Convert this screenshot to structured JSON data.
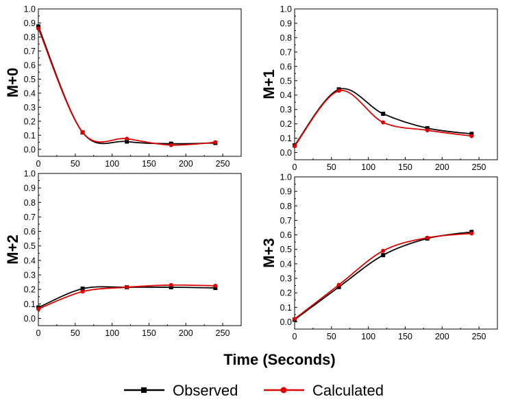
{
  "figure": {
    "xlabel": "Time (Seconds)",
    "legend": [
      {
        "name": "Observed",
        "color": "#000000",
        "marker": "square"
      },
      {
        "name": "Calculated",
        "color": "#e00000",
        "marker": "circle"
      }
    ]
  },
  "chart_data": [
    {
      "type": "line",
      "ylabel": "M+0",
      "xlim": [
        0,
        275
      ],
      "ylim": [
        -0.05,
        1.0
      ],
      "xticks": [
        0,
        50,
        100,
        150,
        200,
        250
      ],
      "yticks": [
        0.0,
        0.1,
        0.2,
        0.3,
        0.4,
        0.5,
        0.6,
        0.7,
        0.8,
        0.9,
        1.0
      ],
      "x": [
        0,
        60,
        120,
        180,
        240
      ],
      "series": [
        {
          "name": "Observed",
          "values": [
            0.875,
            0.12,
            0.055,
            0.04,
            0.045
          ]
        },
        {
          "name": "Calculated",
          "values": [
            0.86,
            0.12,
            0.075,
            0.03,
            0.05
          ]
        }
      ]
    },
    {
      "type": "line",
      "ylabel": "M+1",
      "xlim": [
        0,
        275
      ],
      "ylim": [
        -0.05,
        1.0
      ],
      "xticks": [
        0,
        50,
        100,
        150,
        200,
        250
      ],
      "yticks": [
        0.0,
        0.1,
        0.2,
        0.3,
        0.4,
        0.5,
        0.6,
        0.7,
        0.8,
        0.9,
        1.0
      ],
      "x": [
        0,
        60,
        120,
        180,
        240
      ],
      "series": [
        {
          "name": "Observed",
          "values": [
            0.05,
            0.44,
            0.27,
            0.17,
            0.13
          ]
        },
        {
          "name": "Calculated",
          "values": [
            0.045,
            0.43,
            0.21,
            0.155,
            0.115
          ]
        }
      ]
    },
    {
      "type": "line",
      "ylabel": "M+2",
      "xlim": [
        0,
        275
      ],
      "ylim": [
        -0.05,
        1.0
      ],
      "xticks": [
        0,
        50,
        100,
        150,
        200,
        250
      ],
      "yticks": [
        0.0,
        0.1,
        0.2,
        0.3,
        0.4,
        0.5,
        0.6,
        0.7,
        0.8,
        0.9,
        1.0
      ],
      "x": [
        0,
        60,
        120,
        180,
        240
      ],
      "series": [
        {
          "name": "Observed",
          "values": [
            0.075,
            0.205,
            0.215,
            0.215,
            0.21
          ]
        },
        {
          "name": "Calculated",
          "values": [
            0.065,
            0.185,
            0.215,
            0.23,
            0.225
          ]
        }
      ]
    },
    {
      "type": "line",
      "ylabel": "M+3",
      "xlim": [
        0,
        275
      ],
      "ylim": [
        -0.05,
        1.0
      ],
      "xticks": [
        0,
        50,
        100,
        150,
        200,
        250
      ],
      "yticks": [
        0.0,
        0.1,
        0.2,
        0.3,
        0.4,
        0.5,
        0.6,
        0.7,
        0.8,
        0.9,
        1.0
      ],
      "x": [
        0,
        60,
        120,
        180,
        240
      ],
      "series": [
        {
          "name": "Observed",
          "values": [
            0.015,
            0.24,
            0.46,
            0.575,
            0.62
          ]
        },
        {
          "name": "Calculated",
          "values": [
            0.02,
            0.255,
            0.49,
            0.58,
            0.61
          ]
        }
      ]
    }
  ]
}
